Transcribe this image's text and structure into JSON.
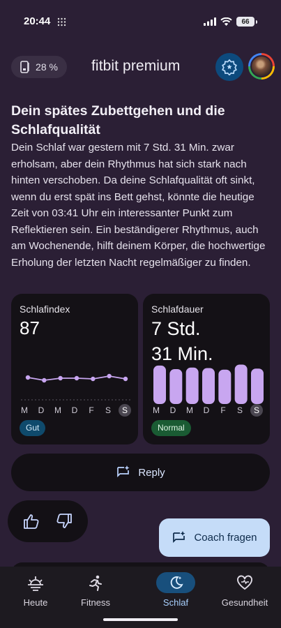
{
  "status_bar": {
    "time": "20:44",
    "battery": "66"
  },
  "top_bar": {
    "battery_percent": "28 %",
    "brand": "fitbit premium"
  },
  "insight": {
    "title": "Dein spätes Zubettgehen und die Schlafqualität",
    "body": "Dein Schlaf war gestern mit 7 Std. 31 Min. zwar erholsam, aber dein Rhythmus hat sich stark nach hinten verschoben. Da deine Schlafqualität oft sinkt, wenn du erst spät ins Bett gehst, könnte die heutige Zeit von 03:41 Uhr ein interessanter Punkt zum Reflektieren sein. Ein beständigerer Rhythmus, auch am Wochenende, hilft deinem Körper, die hochwertige Erholung der letzten Nacht regelmäßiger zu finden."
  },
  "cards": {
    "sleep_score": {
      "title": "Schlafindex",
      "value": "87",
      "badge": "Gut"
    },
    "sleep_duration": {
      "title": "Schlafdauer",
      "value_line1": "7 Std.",
      "value_line2": "31 Min.",
      "badge": "Normal"
    }
  },
  "chart_data": [
    {
      "type": "line",
      "categories": [
        "M",
        "D",
        "M",
        "D",
        "F",
        "S",
        "S"
      ],
      "values": [
        86,
        82,
        85,
        85,
        84,
        88,
        84
      ],
      "ylim": [
        60,
        100
      ],
      "color": "#c8a6f0"
    },
    {
      "type": "bar",
      "categories": [
        "M",
        "D",
        "M",
        "D",
        "F",
        "S",
        "S"
      ],
      "values": [
        7.6,
        6.9,
        7.2,
        7.1,
        6.8,
        7.8,
        7.0
      ],
      "ylim": [
        0,
        8
      ],
      "color": "#c8a6f0"
    }
  ],
  "days": [
    "M",
    "D",
    "M",
    "D",
    "F",
    "S",
    "S"
  ],
  "actions": {
    "reply": "Reply",
    "coach": "Coach fragen"
  },
  "nav": {
    "items": [
      {
        "label": "Heute",
        "icon": "sunrise-icon"
      },
      {
        "label": "Fitness",
        "icon": "running-icon"
      },
      {
        "label": "Schlaf",
        "icon": "moon-icon"
      },
      {
        "label": "Gesundheit",
        "icon": "heart-icon"
      }
    ],
    "active": "Schlaf"
  },
  "colors": {
    "background": "#2b1f35",
    "card": "#141116",
    "accent": "#c8a6f0",
    "nav_active": "#184f7c"
  }
}
